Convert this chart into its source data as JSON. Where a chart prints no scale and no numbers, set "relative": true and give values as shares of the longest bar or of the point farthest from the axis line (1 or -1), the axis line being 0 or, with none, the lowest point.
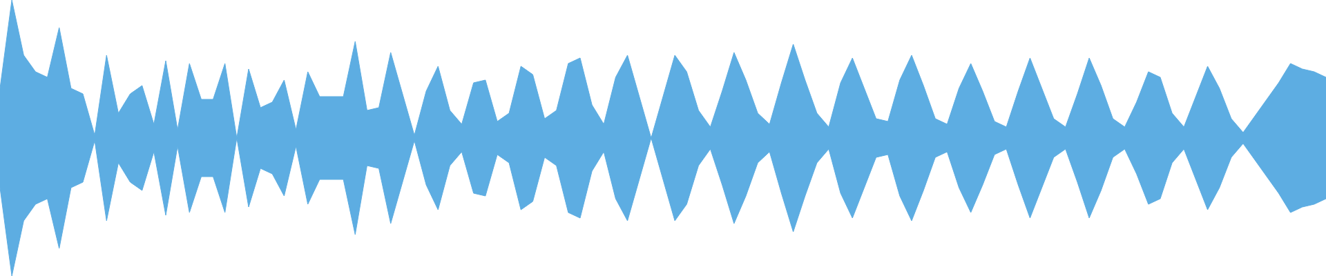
{
  "chart_data": [
    {
      "type": "area",
      "relative": true,
      "color": "#5dade2",
      "categories": [
        null,
        null,
        null,
        null,
        null,
        null,
        null,
        null,
        null,
        null,
        null,
        null,
        null,
        null,
        null,
        null,
        null,
        null,
        null,
        null,
        null,
        null,
        null,
        null,
        null,
        null,
        null,
        null,
        null,
        null,
        null,
        null,
        null,
        null,
        null,
        null,
        null,
        null,
        null,
        null,
        null,
        null,
        null,
        null,
        null,
        null,
        null,
        null,
        null,
        null,
        null,
        null,
        null,
        null,
        null,
        null,
        null,
        null,
        null,
        null,
        null,
        null,
        null,
        null,
        null,
        null,
        null,
        null,
        null,
        null,
        null,
        null,
        null,
        null,
        null,
        null,
        null,
        null,
        null,
        null,
        null,
        null,
        null,
        null,
        null,
        null,
        null,
        null,
        null,
        null,
        null,
        null,
        null,
        null,
        null,
        null,
        null,
        null,
        null,
        null,
        null,
        null,
        null,
        null,
        null,
        null,
        null,
        null,
        null,
        null,
        null,
        null,
        null
      ],
      "values": [
        0.36,
        1,
        0.6,
        0.48,
        0.44,
        0.8,
        0.36,
        0.32,
        0.02,
        0.6,
        0.18,
        0.32,
        0.38,
        0.1,
        0.56,
        0.06,
        0.54,
        0.28,
        0.28,
        0.54,
        0,
        0.5,
        0.22,
        0.26,
        0.42,
        0.06,
        0.48,
        0.3,
        0.3,
        0.3,
        0.7,
        0.2,
        0.22,
        0.62,
        0.32,
        0.02,
        0.34,
        0.52,
        0.2,
        0.1,
        0.4,
        0.42,
        0.12,
        0.18,
        0.52,
        0.46,
        0.14,
        0.2,
        0.54,
        0.58,
        0.24,
        0.1,
        0.44,
        0.6,
        0.3,
        0,
        0.3,
        0.6,
        0.48,
        0.2,
        0.08,
        0.34,
        0.62,
        0.42,
        0.18,
        0.1,
        0.4,
        0.68,
        0.42,
        0.18,
        0.08,
        0.4,
        0.58,
        0.36,
        0.14,
        0.12,
        0.42,
        0.6,
        0.38,
        0.14,
        0.1,
        0.36,
        0.54,
        0.34,
        0.12,
        0.08,
        0.34,
        0.58,
        0.36,
        0.14,
        0.08,
        0.32,
        0.58,
        0.38,
        0.14,
        0.08,
        0.26,
        0.48,
        0.44,
        0.18,
        0.08,
        0.3,
        0.52,
        0.36,
        0.14,
        0.04,
        0.16,
        0.28,
        0.4,
        0.54,
        0.5,
        0.48,
        0.44
      ]
    },
    {
      "type": "area",
      "relative": true,
      "color": "#5dade2",
      "categories": [
        null,
        null,
        null,
        null,
        null,
        null,
        null,
        null,
        null,
        null,
        null,
        null,
        null,
        null,
        null,
        null,
        null,
        null,
        null,
        null,
        null,
        null,
        null,
        null,
        null,
        null,
        null,
        null,
        null,
        null,
        null,
        null,
        null,
        null,
        null,
        null,
        null,
        null,
        null,
        null,
        null,
        null,
        null,
        null,
        null,
        null,
        null,
        null,
        null,
        null,
        null,
        null,
        null,
        null,
        null,
        null,
        null,
        null,
        null,
        null,
        null,
        null,
        null,
        null,
        null,
        null,
        null,
        null,
        null,
        null,
        null,
        null,
        null,
        null,
        null,
        null,
        null,
        null,
        null,
        null,
        null,
        null,
        null,
        null,
        null,
        null,
        null,
        null,
        null,
        null,
        null,
        null,
        null,
        null,
        null,
        null,
        null,
        null,
        null,
        null,
        null,
        null,
        null,
        null,
        null,
        null,
        null,
        null,
        null,
        null,
        null,
        null,
        null
      ],
      "values": [
        -0.36,
        -1,
        -0.6,
        -0.48,
        -0.44,
        -0.8,
        -0.36,
        -0.32,
        -0.02,
        -0.6,
        -0.18,
        -0.32,
        -0.38,
        -0.1,
        -0.56,
        -0.06,
        -0.54,
        -0.28,
        -0.28,
        -0.54,
        0,
        -0.5,
        -0.22,
        -0.26,
        -0.42,
        -0.06,
        -0.48,
        -0.3,
        -0.3,
        -0.3,
        -0.7,
        -0.2,
        -0.22,
        -0.62,
        -0.32,
        -0.02,
        -0.34,
        -0.52,
        -0.2,
        -0.1,
        -0.4,
        -0.42,
        -0.12,
        -0.18,
        -0.52,
        -0.46,
        -0.14,
        -0.2,
        -0.54,
        -0.58,
        -0.24,
        -0.1,
        -0.44,
        -0.6,
        -0.3,
        0,
        -0.3,
        -0.6,
        -0.48,
        -0.2,
        -0.08,
        -0.34,
        -0.62,
        -0.42,
        -0.18,
        -0.1,
        -0.4,
        -0.68,
        -0.42,
        -0.18,
        -0.08,
        -0.4,
        -0.58,
        -0.36,
        -0.14,
        -0.12,
        -0.42,
        -0.6,
        -0.38,
        -0.14,
        -0.1,
        -0.36,
        -0.54,
        -0.34,
        -0.12,
        -0.08,
        -0.34,
        -0.58,
        -0.36,
        -0.14,
        -0.08,
        -0.32,
        -0.58,
        -0.38,
        -0.14,
        -0.08,
        -0.26,
        -0.48,
        -0.44,
        -0.18,
        -0.08,
        -0.3,
        -0.52,
        -0.36,
        -0.14,
        -0.04,
        -0.16,
        -0.28,
        -0.4,
        -0.54,
        -0.5,
        -0.48,
        -0.44
      ]
    }
  ]
}
